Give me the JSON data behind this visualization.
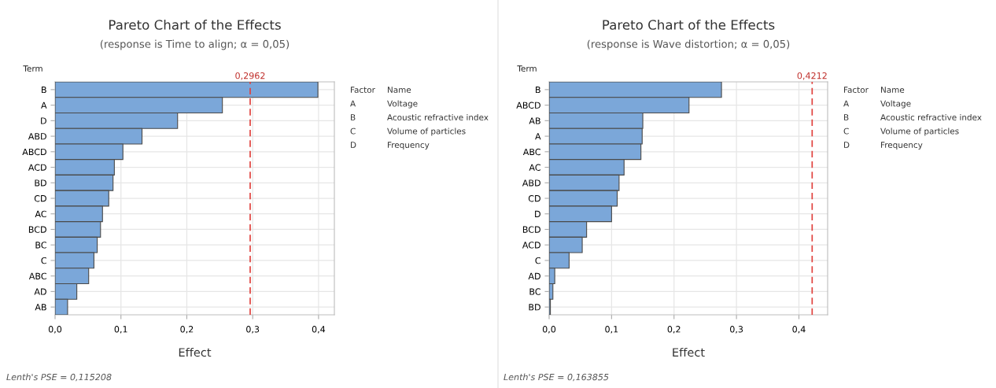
{
  "chart_data": [
    {
      "type": "bar",
      "orientation": "horizontal",
      "title": "Pareto Chart of the Effects",
      "subtitle": "(response is Time to align; α = 0,05)",
      "xlabel": "Effect",
      "ylabel": "Term",
      "categories": [
        "B",
        "A",
        "D",
        "ABD",
        "ABCD",
        "ACD",
        "BD",
        "CD",
        "AC",
        "BCD",
        "BC",
        "C",
        "ABC",
        "AD",
        "AB"
      ],
      "values": [
        0.399,
        0.254,
        0.186,
        0.132,
        0.103,
        0.09,
        0.088,
        0.0815,
        0.072,
        0.069,
        0.064,
        0.059,
        0.051,
        0.033,
        0.019
      ],
      "color": "#7ba7d9",
      "xlim": [
        0,
        0.424
      ],
      "xticks": [
        {
          "value": 0,
          "label": "0,0"
        },
        {
          "value": 0.1,
          "label": "0,1"
        },
        {
          "value": 0.2,
          "label": "0,2"
        },
        {
          "value": 0.3,
          "label": "0,3"
        },
        {
          "value": 0.4,
          "label": "0,4"
        }
      ],
      "ref_lines": [
        {
          "axis": "x",
          "value": 0.2962,
          "label": "0,2962",
          "color": "#e0403c",
          "line_style": "dashed"
        }
      ],
      "grid": true,
      "annotations": [
        "Factor",
        "Name",
        "A",
        "Voltage",
        "B",
        "Acoustic refractive index",
        "C",
        "Volume of particles",
        "D",
        "Frequency",
        "Lenth's PSE = 0,115208"
      ]
    },
    {
      "type": "bar",
      "orientation": "horizontal",
      "title": "Pareto Chart of the Effects",
      "subtitle": "(response is Wave distortion; α = 0,05)",
      "xlabel": "Effect",
      "ylabel": "Term",
      "categories": [
        "B",
        "ABCD",
        "AB",
        "A",
        "ABC",
        "AC",
        "ABD",
        "CD",
        "D",
        "BCD",
        "ACD",
        "C",
        "AD",
        "BC",
        "BD"
      ],
      "values": [
        0.276,
        0.224,
        0.15,
        0.149,
        0.147,
        0.12,
        0.112,
        0.109,
        0.1,
        0.06,
        0.053,
        0.032,
        0.009,
        0.006,
        0.002
      ],
      "color": "#7ba7d9",
      "xlim": [
        0,
        0.446
      ],
      "xticks": [
        {
          "value": 0,
          "label": "0,0"
        },
        {
          "value": 0.1,
          "label": "0,1"
        },
        {
          "value": 0.2,
          "label": "0,2"
        },
        {
          "value": 0.3,
          "label": "0,3"
        },
        {
          "value": 0.4,
          "label": "0,4"
        }
      ],
      "ref_lines": [
        {
          "axis": "x",
          "value": 0.4212,
          "label": "0,4212",
          "color": "#e0403c",
          "line_style": "dashed"
        }
      ],
      "grid": true,
      "annotations": [
        "Factor",
        "Name",
        "A",
        "Voltage",
        "B",
        "Acoustic refractive index",
        "C",
        "Volume of particles",
        "D",
        "Frequency",
        "Lenth's PSE = 0,163855"
      ]
    }
  ]
}
